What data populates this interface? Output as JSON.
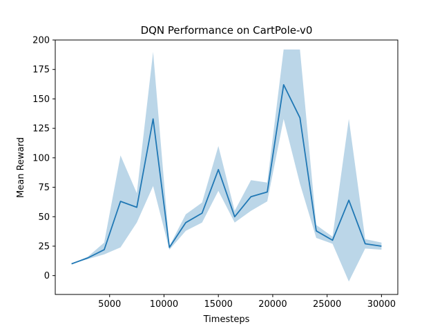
{
  "chart_data": {
    "type": "line",
    "title": "DQN Performance on CartPole-v0",
    "xlabel": "Timesteps",
    "ylabel": "Mean Reward",
    "xlim": [
      0,
      31500
    ],
    "ylim": [
      -16,
      200
    ],
    "xticks": [
      5000,
      10000,
      15000,
      20000,
      25000,
      30000
    ],
    "yticks": [
      0,
      25,
      50,
      75,
      100,
      125,
      150,
      175,
      200
    ],
    "grid": false,
    "legend": "none",
    "colors": {
      "line": "#1f77b4",
      "band": "#1f77b4",
      "band_opacity": 0.3
    },
    "series": [
      {
        "x": [
          1500,
          3000,
          4500,
          6000,
          7500,
          9000,
          10500,
          12000,
          13500,
          15000,
          16500,
          18000,
          19500,
          21000,
          22500,
          24000,
          25500,
          27000,
          28500,
          30000
        ],
        "mean": [
          10,
          15,
          22,
          63,
          58,
          133,
          24,
          45,
          53,
          90,
          50,
          67,
          71,
          162,
          134,
          38,
          30,
          64,
          27,
          25
        ],
        "upper": [
          10,
          16,
          28,
          102,
          70,
          190,
          25,
          52,
          62,
          110,
          55,
          81,
          79,
          192,
          192,
          43,
          33,
          133,
          31,
          28
        ],
        "lower": [
          10,
          14,
          18,
          24,
          45,
          76,
          22,
          38,
          45,
          72,
          45,
          55,
          63,
          133,
          78,
          32,
          27,
          -5,
          23,
          22
        ]
      }
    ]
  }
}
